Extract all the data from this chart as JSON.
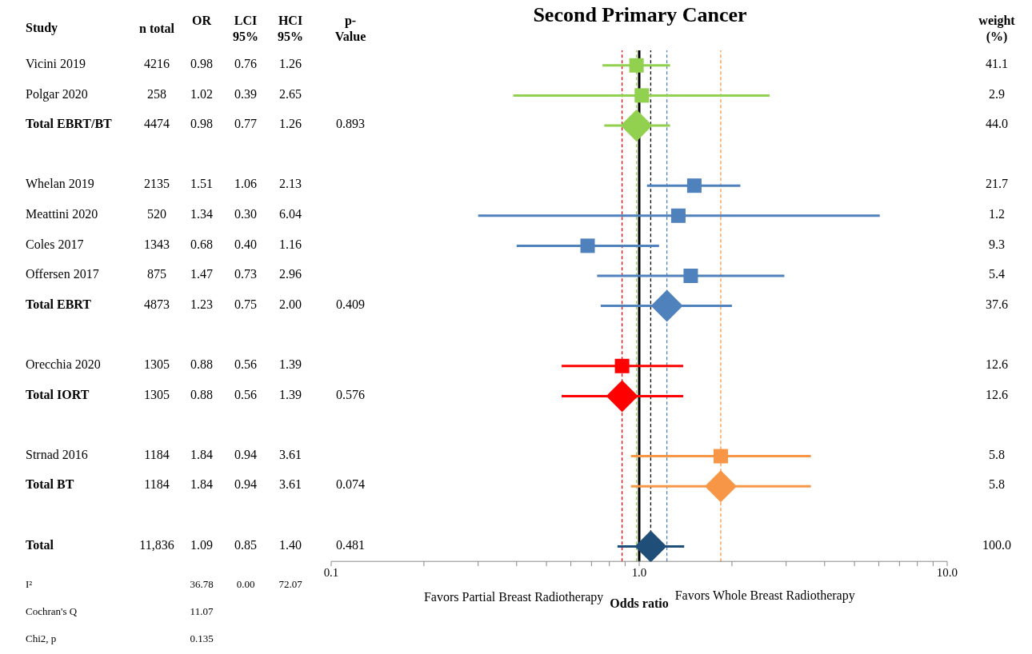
{
  "chart_data": [
    {
      "type": "other",
      "ylabel": "Study",
      "data_labels": true,
      "categories": [
        "Vicini 2019",
        "Polgar 2020",
        "Total EBRT/BT",
        null,
        "Whelan 2019",
        "Meattini 2020",
        "Coles 2017",
        "Offersen 2017",
        "Total EBRT",
        null,
        "Orecchia 2020",
        "Total IORT",
        null,
        "Strnad 2016",
        "Total BT",
        null,
        "Total",
        "I²",
        "Cochran's Q",
        "Chi2, p"
      ],
      "series": [
        {
          "name": "n total",
          "values": [
            4216,
            258,
            4474,
            null,
            2135,
            520,
            1343,
            875,
            4873,
            null,
            1305,
            1305,
            null,
            1184,
            1184,
            null,
            11836,
            null,
            null,
            null
          ],
          "value_labels": [
            "4216",
            "258",
            "4474",
            null,
            "2135",
            "520",
            "1343",
            "875",
            "4873",
            null,
            "1305",
            "1305",
            null,
            "1184",
            "1184",
            null,
            "11,836",
            null,
            null,
            null
          ]
        },
        {
          "name": "OR",
          "values": [
            0.98,
            1.02,
            0.98,
            null,
            1.51,
            1.34,
            0.68,
            1.47,
            1.23,
            null,
            0.88,
            0.88,
            null,
            1.84,
            1.84,
            null,
            1.09,
            36.78,
            11.07,
            0.135
          ],
          "value_labels": [
            "0.98",
            "1.02",
            "0.98",
            null,
            "1.51",
            "1.34",
            "0.68",
            "1.47",
            "1.23",
            null,
            "0.88",
            "0.88",
            null,
            "1.84",
            "1.84",
            null,
            "1.09",
            "36.78",
            "11.07",
            "0.135"
          ]
        },
        {
          "name": "LCI 95%",
          "values": [
            0.76,
            0.39,
            0.77,
            null,
            1.06,
            0.3,
            0.4,
            0.73,
            0.75,
            null,
            0.56,
            0.56,
            null,
            0.94,
            0.94,
            null,
            0.85,
            0.0,
            null,
            null
          ],
          "value_labels": [
            "0.76",
            "0.39",
            "0.77",
            null,
            "1.06",
            "0.30",
            "0.40",
            "0.73",
            "0.75",
            null,
            "0.56",
            "0.56",
            null,
            "0.94",
            "0.94",
            null,
            "0.85",
            "0.00",
            null,
            null
          ]
        },
        {
          "name": "HCI 95%",
          "values": [
            1.26,
            2.65,
            1.26,
            null,
            2.13,
            6.04,
            1.16,
            2.96,
            2.0,
            null,
            1.39,
            1.39,
            null,
            3.61,
            3.61,
            null,
            1.4,
            72.07,
            null,
            null
          ],
          "value_labels": [
            "1.26",
            "2.65",
            "1.26",
            null,
            "2.13",
            "6.04",
            "1.16",
            "2.96",
            "2.00",
            null,
            "1.39",
            "1.39",
            null,
            "3.61",
            "3.61",
            null,
            "1.40",
            "72.07",
            null,
            null
          ]
        },
        {
          "name": "p-Value",
          "values": [
            null,
            null,
            0.893,
            null,
            null,
            null,
            null,
            null,
            0.409,
            null,
            null,
            0.576,
            null,
            null,
            0.074,
            null,
            0.481,
            null,
            null,
            null
          ],
          "value_labels": [
            null,
            null,
            "0.893",
            null,
            null,
            null,
            null,
            null,
            "0.409",
            null,
            null,
            "0.576",
            null,
            null,
            "0.074",
            null,
            "0.481",
            null,
            null,
            null
          ]
        },
        {
          "name": "weight (%)",
          "values": [
            41.1,
            2.9,
            44.0,
            null,
            21.7,
            1.2,
            9.3,
            5.4,
            37.6,
            null,
            12.6,
            12.6,
            null,
            5.8,
            5.8,
            null,
            100.0,
            null,
            null,
            null
          ],
          "value_labels": [
            "41.1",
            "2.9",
            "44.0",
            null,
            "21.7",
            "1.2",
            "9.3",
            "5.4",
            "37.6",
            null,
            "12.6",
            "12.6",
            null,
            "5.8",
            "5.8",
            null,
            "100.0",
            null,
            null,
            null
          ]
        }
      ]
    },
    {
      "type": "scatter",
      "orientation": "horizontal",
      "title": "Second Primary Cancer",
      "xlabel": "Odds ratio",
      "annotations": [
        "Favors Partial Breast Radiotherapy",
        "Favors Whole Breast Radiotherapy"
      ],
      "categories": [
        null,
        null,
        null,
        null,
        null,
        null,
        null,
        null,
        null,
        null,
        null,
        null,
        null,
        null,
        null,
        null,
        null
      ],
      "log": "x",
      "xlim": [
        0.1,
        10
      ],
      "tick_labels": "x",
      "xticks": [
        {
          "value": 0.1,
          "label": "0.1"
        },
        {
          "value": 0.2,
          "label": null
        },
        {
          "value": 0.3,
          "label": null
        },
        {
          "value": 0.4,
          "label": null
        },
        {
          "value": 0.5,
          "label": null
        },
        {
          "value": 0.6,
          "label": null
        },
        {
          "value": 0.7,
          "label": null
        },
        {
          "value": 0.8,
          "label": null
        },
        {
          "value": 0.9,
          "label": null
        },
        {
          "value": 1,
          "label": "1.0"
        },
        {
          "value": 2,
          "label": null
        },
        {
          "value": 3,
          "label": null
        },
        {
          "value": 4,
          "label": null
        },
        {
          "value": 5,
          "label": null
        },
        {
          "value": 6,
          "label": null
        },
        {
          "value": 7,
          "label": null
        },
        {
          "value": 8,
          "label": null
        },
        {
          "value": 9,
          "label": null
        },
        {
          "value": 10,
          "label": "10.0"
        }
      ],
      "ref_lines": [
        {
          "axis": "x",
          "value": 0.88,
          "color": "#ff0000",
          "line_style": "dashed"
        },
        {
          "axis": "x",
          "value": 0.98,
          "color": "#92d050",
          "line_style": "dashed"
        },
        {
          "axis": "x",
          "value": 1.09,
          "color": "#000000",
          "line_style": "dashed"
        },
        {
          "axis": "x",
          "value": 1.23,
          "color": "#4f81bd",
          "line_style": "dashed"
        },
        {
          "axis": "x",
          "value": 1.84,
          "color": "#f79646",
          "line_style": "dashed"
        },
        {
          "axis": "x",
          "value": 1,
          "color": "#000000",
          "line_style": "solid"
        }
      ],
      "series": [
        {
          "color": "#92d050",
          "marker": "square",
          "values": [
            0.98,
            1.02,
            null,
            null,
            null,
            null,
            null,
            null,
            null,
            null,
            null,
            null,
            null,
            null,
            null,
            null,
            null
          ],
          "errors": [
            [
              0.76,
              1.26
            ],
            [
              0.39,
              2.65
            ],
            null,
            null,
            null,
            null,
            null,
            null,
            null,
            null,
            null,
            null,
            null,
            null,
            null,
            null,
            null
          ]
        },
        {
          "color": "#92d050",
          "marker": "diamond",
          "values": [
            null,
            null,
            0.98,
            null,
            null,
            null,
            null,
            null,
            null,
            null,
            null,
            null,
            null,
            null,
            null,
            null,
            null
          ],
          "errors": [
            null,
            null,
            [
              0.77,
              1.26
            ],
            null,
            null,
            null,
            null,
            null,
            null,
            null,
            null,
            null,
            null,
            null,
            null,
            null,
            null
          ]
        },
        {
          "color": "#4f81bd",
          "marker": "square",
          "values": [
            null,
            null,
            null,
            null,
            1.51,
            1.34,
            0.68,
            1.47,
            null,
            null,
            null,
            null,
            null,
            null,
            null,
            null,
            null
          ],
          "errors": [
            null,
            null,
            null,
            null,
            [
              1.06,
              2.13
            ],
            [
              0.3,
              6.04
            ],
            [
              0.4,
              1.16
            ],
            [
              0.73,
              2.96
            ],
            null,
            null,
            null,
            null,
            null,
            null,
            null,
            null,
            null
          ]
        },
        {
          "color": "#4f81bd",
          "marker": "diamond",
          "values": [
            null,
            null,
            null,
            null,
            null,
            null,
            null,
            null,
            1.23,
            null,
            null,
            null,
            null,
            null,
            null,
            null,
            null
          ],
          "errors": [
            null,
            null,
            null,
            null,
            null,
            null,
            null,
            null,
            [
              0.75,
              2.0
            ],
            null,
            null,
            null,
            null,
            null,
            null,
            null,
            null
          ]
        },
        {
          "color": "#ff0000",
          "marker": "square",
          "values": [
            null,
            null,
            null,
            null,
            null,
            null,
            null,
            null,
            null,
            null,
            0.88,
            null,
            null,
            null,
            null,
            null,
            null
          ],
          "errors": [
            null,
            null,
            null,
            null,
            null,
            null,
            null,
            null,
            null,
            null,
            [
              0.56,
              1.39
            ],
            null,
            null,
            null,
            null,
            null,
            null
          ]
        },
        {
          "color": "#ff0000",
          "marker": "diamond",
          "values": [
            null,
            null,
            null,
            null,
            null,
            null,
            null,
            null,
            null,
            null,
            null,
            0.88,
            null,
            null,
            null,
            null,
            null
          ],
          "errors": [
            null,
            null,
            null,
            null,
            null,
            null,
            null,
            null,
            null,
            null,
            null,
            [
              0.56,
              1.39
            ],
            null,
            null,
            null,
            null,
            null
          ]
        },
        {
          "color": "#f79646",
          "marker": "square",
          "values": [
            null,
            null,
            null,
            null,
            null,
            null,
            null,
            null,
            null,
            null,
            null,
            null,
            null,
            1.84,
            null,
            null,
            null
          ],
          "errors": [
            null,
            null,
            null,
            null,
            null,
            null,
            null,
            null,
            null,
            null,
            null,
            null,
            null,
            [
              0.94,
              3.61
            ],
            null,
            null,
            null
          ]
        },
        {
          "color": "#f79646",
          "marker": "diamond",
          "values": [
            null,
            null,
            null,
            null,
            null,
            null,
            null,
            null,
            null,
            null,
            null,
            null,
            null,
            null,
            1.84,
            null,
            null
          ],
          "errors": [
            null,
            null,
            null,
            null,
            null,
            null,
            null,
            null,
            null,
            null,
            null,
            null,
            null,
            null,
            [
              0.94,
              3.61
            ],
            null,
            null
          ]
        },
        {
          "color": "#1f4e79",
          "marker": "diamond",
          "values": [
            null,
            null,
            null,
            null,
            null,
            null,
            null,
            null,
            null,
            null,
            null,
            null,
            null,
            null,
            null,
            null,
            1.09
          ],
          "errors": [
            null,
            null,
            null,
            null,
            null,
            null,
            null,
            null,
            null,
            null,
            null,
            null,
            null,
            null,
            null,
            null,
            [
              0.85,
              1.4
            ]
          ]
        }
      ]
    }
  ]
}
